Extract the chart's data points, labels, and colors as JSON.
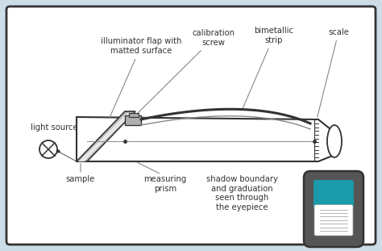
{
  "bg_color": "#cddde8",
  "box_bg": "#ffffff",
  "box_edge": "#444444",
  "lc": "#888888",
  "dc": "#333333",
  "teal": "#1a9aaa",
  "gray_capsule": "#555555",
  "flap_gray": "#c8c8c8",
  "prism_gray": "#b0b0b0",
  "labels": {
    "illuminator": "illuminator flap with\nmatted surface",
    "calibration": "calibration\nscrew",
    "bimetallic": "bimetallic\nstrip",
    "scale": "scale",
    "light_source": "light source",
    "sample": "sample",
    "measuring_prism": "measuring\nprism",
    "shadow_boundary": "shadow boundary\nand graduation\nseen through\nthe eyepiece"
  },
  "fs": 7.2
}
